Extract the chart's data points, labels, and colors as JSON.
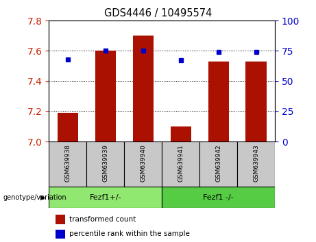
{
  "title": "GDS4446 / 10495574",
  "samples": [
    "GSM639938",
    "GSM639939",
    "GSM639940",
    "GSM639941",
    "GSM639942",
    "GSM639943"
  ],
  "bar_values": [
    7.19,
    7.6,
    7.7,
    7.1,
    7.53,
    7.53
  ],
  "percentile_values": [
    68,
    75,
    75,
    67,
    74,
    74
  ],
  "ylim_left": [
    7.0,
    7.8
  ],
  "ylim_right": [
    0,
    100
  ],
  "yticks_left": [
    7.0,
    7.2,
    7.4,
    7.6,
    7.8
  ],
  "yticks_right": [
    0,
    25,
    50,
    75,
    100
  ],
  "bar_color": "#aa1100",
  "dot_color": "#0000cc",
  "grid_color": "#000000",
  "groups": [
    {
      "label": "Fezf1+/-",
      "indices": [
        0,
        1,
        2
      ],
      "color": "#90e870"
    },
    {
      "label": "Fezf1 -/-",
      "indices": [
        3,
        4,
        5
      ],
      "color": "#55cc44"
    }
  ],
  "group_label_prefix": "genotype/variation",
  "legend_red_label": "transformed count",
  "legend_blue_label": "percentile rank within the sample",
  "tick_label_color_left": "#cc2200",
  "tick_label_color_right": "#0000cc",
  "bar_width": 0.55,
  "sample_area_color": "#c8c8c8",
  "figure_bg": "#ffffff"
}
